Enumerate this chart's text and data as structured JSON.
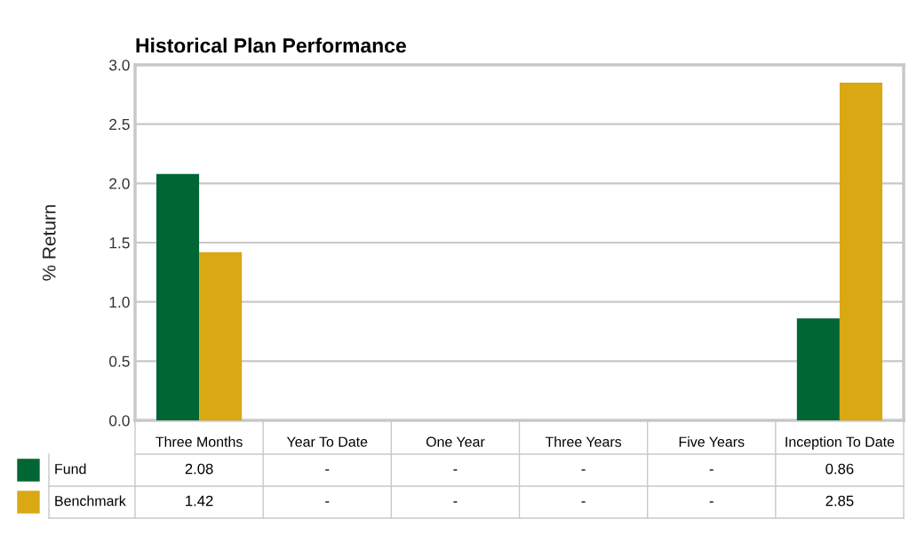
{
  "chart_data": {
    "type": "bar",
    "title": "Historical Plan Performance",
    "ylabel": "% Return",
    "categories": [
      "Three Months",
      "Year To Date",
      "One Year",
      "Three Years",
      "Five Years",
      "Inception To Date"
    ],
    "series": [
      {
        "name": "Fund",
        "color": "#006633",
        "values": [
          2.08,
          null,
          null,
          null,
          null,
          0.86
        ],
        "value_labels": [
          "2.08",
          "-",
          "-",
          "-",
          "-",
          "0.86"
        ]
      },
      {
        "name": "Benchmark",
        "color": "#d9a813",
        "values": [
          1.42,
          null,
          null,
          null,
          null,
          2.85
        ],
        "value_labels": [
          "1.42",
          "-",
          "-",
          "-",
          "-",
          "2.85"
        ]
      }
    ],
    "ylim": [
      0,
      3
    ],
    "yticks": [
      {
        "value": 0,
        "label": "0.0"
      },
      {
        "value": 0.5,
        "label": "0.5"
      },
      {
        "value": 1,
        "label": "1.0"
      },
      {
        "value": 1.5,
        "label": "1.5"
      },
      {
        "value": 2,
        "label": "2.0"
      },
      {
        "value": 2.5,
        "label": "2.5"
      },
      {
        "value": 3,
        "label": "3.0"
      }
    ],
    "grid": "y",
    "legend": "bottom left"
  }
}
